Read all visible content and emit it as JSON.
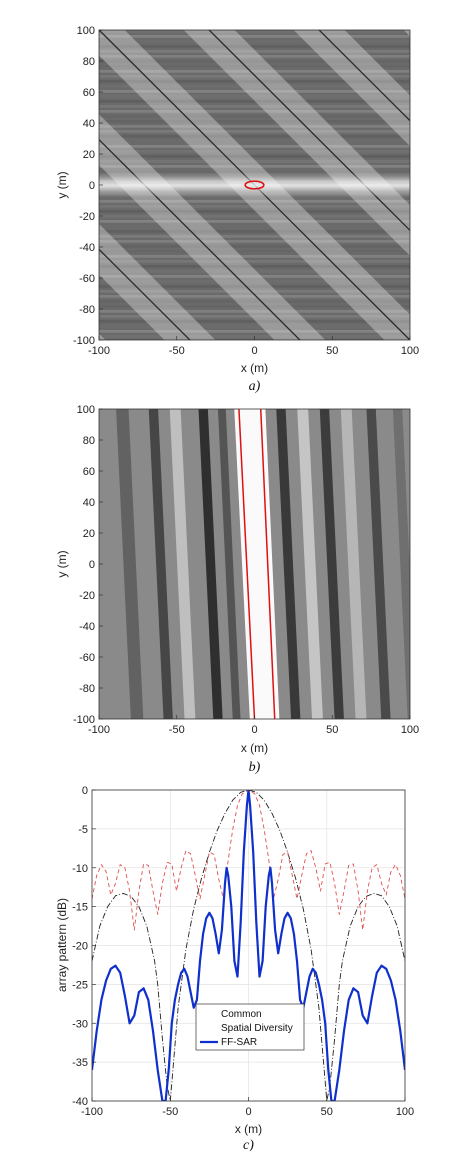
{
  "chart_data": [
    {
      "type": "heatmap",
      "caption": "a)",
      "xlabel": "x (m)",
      "ylabel": "y (m)",
      "xlim": [
        -100,
        100
      ],
      "ylim": [
        -100,
        100
      ],
      "x_ticks": [
        -100,
        -50,
        0,
        50,
        100
      ],
      "y_ticks": [
        -100,
        -80,
        -60,
        -40,
        -20,
        0,
        20,
        40,
        60,
        80,
        100
      ],
      "colormap": "grayscale",
      "contour_color": "#dd1111",
      "contour": {
        "center": [
          0,
          0
        ],
        "half_width": 6,
        "half_height": 2.5
      }
    },
    {
      "type": "heatmap",
      "caption": "b)",
      "xlabel": "x (m)",
      "ylabel": "y (m)",
      "xlim": [
        -100,
        100
      ],
      "ylim": [
        -100,
        100
      ],
      "x_ticks": [
        -100,
        -50,
        0,
        50,
        100
      ],
      "y_ticks": [
        -100,
        -80,
        -60,
        -40,
        -20,
        0,
        20,
        40,
        60,
        80,
        100
      ],
      "colormap": "grayscale",
      "contour_color": "#dd1111",
      "contour": {
        "left_edge_y100": -10,
        "right_edge_y100": 4,
        "left_edge_ym100": 0,
        "right_edge_ym100": 13
      }
    },
    {
      "type": "line",
      "caption": "c)",
      "xlabel": "x (m)",
      "ylabel": "array pattern (dB)",
      "xlim": [
        -100,
        100
      ],
      "ylim": [
        -40,
        0
      ],
      "x_ticks": [
        -100,
        -50,
        0,
        50,
        100
      ],
      "y_ticks": [
        0,
        -5,
        -10,
        -15,
        -20,
        -25,
        -30,
        -35,
        -40
      ],
      "grid": true,
      "legend_position": "lower-center",
      "series": [
        {
          "name": "Common",
          "color": "#222222",
          "style": "dash-dot",
          "x": [
            -100,
            -95,
            -90,
            -85,
            -80,
            -75,
            -70,
            -65,
            -60,
            -58,
            -55,
            -52,
            -50,
            -45,
            -40,
            -35,
            -30,
            -25,
            -20,
            -15,
            -10,
            -5,
            0,
            5,
            10,
            15,
            20,
            25,
            30,
            35,
            40,
            45,
            50,
            52,
            55,
            58,
            60,
            65,
            70,
            75,
            80,
            85,
            90,
            95,
            100
          ],
          "y": [
            -22,
            -17.5,
            -15,
            -13.6,
            -13.3,
            -13.7,
            -15,
            -17.5,
            -22,
            -25,
            -32,
            -38,
            -40,
            -28,
            -20.5,
            -15.3,
            -11.3,
            -8,
            -5.2,
            -3,
            -1.3,
            -0.3,
            0,
            -0.3,
            -1.3,
            -3,
            -5.2,
            -8,
            -11.3,
            -15.3,
            -20.5,
            -28,
            -40,
            -38,
            -32,
            -25,
            -22,
            -17.5,
            -15,
            -13.7,
            -13.3,
            -13.6,
            -15,
            -17.5,
            -22
          ]
        },
        {
          "name": "Spatial Diversity",
          "color": "#e05050",
          "style": "dashed",
          "x": [
            -100,
            -97,
            -94,
            -91,
            -88,
            -85,
            -82,
            -79,
            -76,
            -73,
            -70,
            -67,
            -64,
            -61,
            -58,
            -55,
            -52,
            -49,
            -46,
            -43,
            -40,
            -37,
            -34,
            -31,
            -28,
            -25,
            -22,
            -19,
            -16,
            -13,
            -10,
            -7,
            -4,
            0,
            4,
            7,
            10,
            13,
            16,
            19,
            22,
            25,
            28,
            31,
            34,
            37,
            40,
            43,
            46,
            49,
            52,
            55,
            58,
            61,
            64,
            67,
            70,
            73,
            76,
            79,
            82,
            85,
            88,
            91,
            94,
            97,
            100
          ],
          "y": [
            -14,
            -11,
            -9.6,
            -10.5,
            -13.5,
            -12,
            -9.6,
            -10,
            -13,
            -18,
            -13,
            -9.5,
            -9.7,
            -13,
            -16,
            -12,
            -9.3,
            -9.5,
            -13,
            -10,
            -7.8,
            -8.2,
            -11,
            -14,
            -11,
            -8,
            -8.3,
            -11.5,
            -14,
            -9,
            -5,
            -2,
            -0.5,
            0,
            -0.5,
            -2,
            -5,
            -9,
            -14,
            -11.5,
            -8.3,
            -8,
            -11,
            -14,
            -11,
            -8.2,
            -7.8,
            -10,
            -13,
            -9.5,
            -9.3,
            -12,
            -16,
            -13,
            -9.7,
            -9.5,
            -13,
            -18,
            -13,
            -10,
            -9.6,
            -12,
            -13.5,
            -10.5,
            -9.6,
            -11,
            -14
          ]
        },
        {
          "name": "FF-SAR",
          "color": "#1030cc",
          "style": "solid",
          "x": [
            -100,
            -97,
            -94,
            -91,
            -88,
            -85,
            -82,
            -79,
            -76,
            -73,
            -70,
            -67,
            -64,
            -61,
            -58,
            -55,
            -53,
            -51,
            -49,
            -47,
            -45,
            -43,
            -41,
            -39,
            -37,
            -35,
            -33,
            -31,
            -29,
            -27,
            -25,
            -23,
            -21,
            -19,
            -17,
            -15,
            -14,
            -13,
            -11,
            -9,
            -7,
            -5,
            -3,
            -1,
            0,
            1,
            3,
            5,
            7,
            9,
            11,
            13,
            14,
            15,
            17,
            19,
            21,
            23,
            25,
            27,
            29,
            31,
            33,
            35,
            37,
            39,
            41,
            43,
            45,
            47,
            49,
            51,
            53,
            55,
            58,
            61,
            64,
            67,
            70,
            73,
            76,
            79,
            82,
            85,
            88,
            91,
            94,
            97,
            100
          ],
          "y": [
            -36,
            -31,
            -27,
            -24.5,
            -23,
            -22.6,
            -23.5,
            -26.5,
            -30,
            -29,
            -26,
            -25.5,
            -27,
            -31,
            -36,
            -40,
            -40,
            -36,
            -30,
            -27,
            -25,
            -23.5,
            -23,
            -24,
            -26,
            -28,
            -27,
            -22,
            -18.5,
            -16.5,
            -15.8,
            -16.5,
            -18.5,
            -21,
            -18,
            -12,
            -10,
            -11,
            -15,
            -22,
            -24,
            -17,
            -8,
            -2,
            0,
            -2,
            -8,
            -17,
            -24,
            -22,
            -15,
            -11,
            -10,
            -12,
            -18,
            -21,
            -18.5,
            -16.5,
            -15.8,
            -16.5,
            -18.5,
            -22,
            -27,
            -28,
            -26,
            -24,
            -23,
            -23.5,
            -25,
            -27,
            -30,
            -36,
            -40,
            -40,
            -36,
            -31,
            -27,
            -25.5,
            -26,
            -29,
            -30,
            -26.5,
            -23.5,
            -22.6,
            -23,
            -24.5,
            -27,
            -31,
            -36
          ]
        }
      ]
    }
  ]
}
